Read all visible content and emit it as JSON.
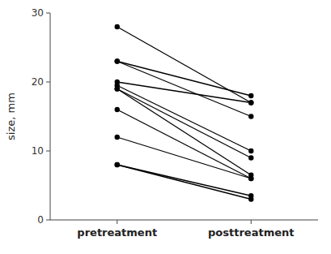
{
  "chart_data": {
    "type": "line",
    "categories": [
      "pretreatment",
      "posttreatment"
    ],
    "series": [
      {
        "values": [
          28,
          17
        ]
      },
      {
        "values": [
          23,
          18
        ]
      },
      {
        "values": [
          23,
          15
        ]
      },
      {
        "values": [
          20,
          17
        ]
      },
      {
        "values": [
          19.5,
          10
        ]
      },
      {
        "values": [
          19,
          9
        ]
      },
      {
        "values": [
          19,
          6.5
        ]
      },
      {
        "values": [
          16,
          6
        ]
      },
      {
        "values": [
          12,
          6
        ]
      },
      {
        "values": [
          8,
          3.5
        ]
      },
      {
        "values": [
          8,
          3
        ]
      }
    ],
    "color": "#000000",
    "marker": "circle",
    "ylabel": "size, mm",
    "ylim": [
      0,
      30
    ],
    "yticks": [
      0,
      10,
      20,
      30
    ]
  }
}
